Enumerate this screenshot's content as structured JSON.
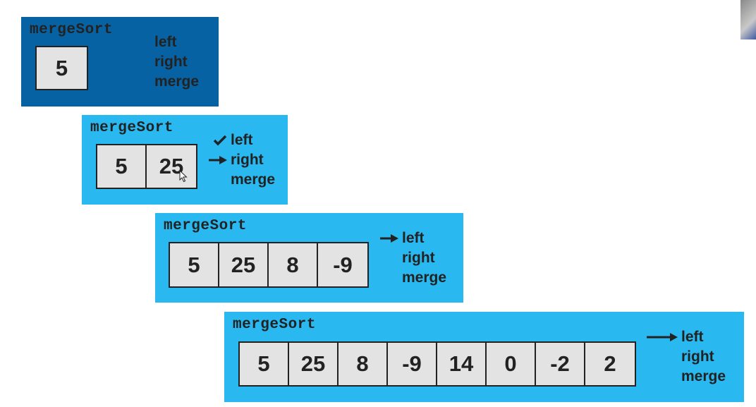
{
  "colors": {
    "frame_active": "#0762a3",
    "frame": "#29b8f0",
    "cell": "#e3e3e3",
    "text": "#222222"
  },
  "frames": [
    {
      "title": "mergeSort",
      "values": [
        "5"
      ],
      "steps": [
        {
          "label": "left",
          "marker": "none"
        },
        {
          "label": "right",
          "marker": "none"
        },
        {
          "label": "merge",
          "marker": "none"
        }
      ]
    },
    {
      "title": "mergeSort",
      "values": [
        "5",
        "25"
      ],
      "steps": [
        {
          "label": "left",
          "marker": "check"
        },
        {
          "label": "right",
          "marker": "arrow"
        },
        {
          "label": "merge",
          "marker": "none"
        }
      ]
    },
    {
      "title": "mergeSort",
      "values": [
        "5",
        "25",
        "8",
        "-9"
      ],
      "steps": [
        {
          "label": "left",
          "marker": "arrow"
        },
        {
          "label": "right",
          "marker": "none"
        },
        {
          "label": "merge",
          "marker": "none"
        }
      ]
    },
    {
      "title": "mergeSort",
      "values": [
        "5",
        "25",
        "8",
        "-9",
        "14",
        "0",
        "-2",
        "2"
      ],
      "steps": [
        {
          "label": "left",
          "marker": "long-arrow"
        },
        {
          "label": "right",
          "marker": "none"
        },
        {
          "label": "merge",
          "marker": "none"
        }
      ]
    }
  ],
  "icons": {
    "check": "check-icon",
    "arrow": "arrow-right-icon",
    "cursor": "mouse-cursor-icon"
  }
}
